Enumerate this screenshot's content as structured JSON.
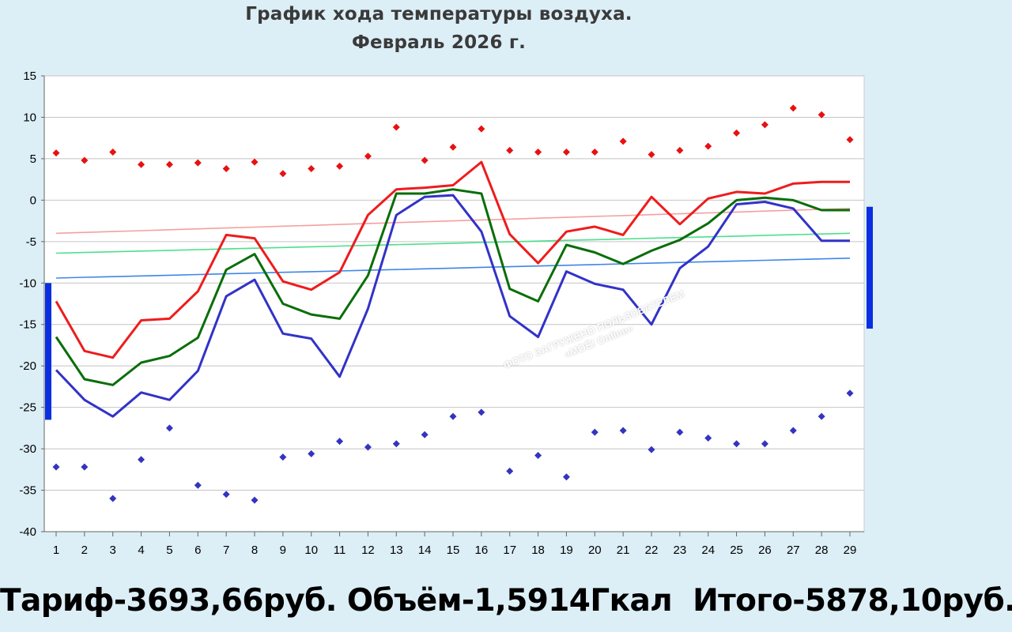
{
  "header": {
    "title_line1": "График хода температуры воздуха.",
    "title_line2": "Февраль 2026 г."
  },
  "footer": {
    "text": "Тариф-3693,66руб. Объём-1,5914Гкал  Итого-5878,10руб."
  },
  "watermark": {
    "line1": "ФОТО ЗАГРУЖЕНО ПОЛЬЗОВАТЕЛЕМ",
    "line2": "«МОЁ! Online»"
  },
  "chart_data": {
    "type": "line",
    "title": "График хода температуры воздуха.\nФевраль 2026 г.",
    "xlabel": "",
    "ylabel": "",
    "x": [
      1,
      2,
      3,
      4,
      5,
      6,
      7,
      8,
      9,
      10,
      11,
      12,
      13,
      14,
      15,
      16,
      17,
      18,
      19,
      20,
      21,
      22,
      23,
      24,
      25,
      26,
      27,
      28,
      29
    ],
    "ylim": [
      -40,
      15
    ],
    "yticks": [
      15,
      10,
      5,
      0,
      -5,
      -10,
      -15,
      -20,
      -25,
      -30,
      -35,
      -40
    ],
    "grid": true,
    "legend": "none",
    "series": [
      {
        "kind": "line",
        "color": "#ee1c1c",
        "values": [
          -12.2,
          -18.2,
          -19.0,
          -14.5,
          -14.3,
          -11.0,
          -4.2,
          -4.6,
          -9.8,
          -10.8,
          -8.7,
          -1.8,
          1.3,
          1.5,
          1.8,
          4.6,
          -4.1,
          -7.6,
          -3.8,
          -3.2,
          -4.2,
          0.4,
          -2.9,
          0.2,
          1.0,
          0.8,
          2.0,
          2.2,
          2.2
        ]
      },
      {
        "kind": "line",
        "color": "#0a6e0a",
        "values": [
          -16.5,
          -21.6,
          -22.3,
          -19.6,
          -18.8,
          -16.6,
          -8.4,
          -6.5,
          -12.5,
          -13.8,
          -14.3,
          -9.1,
          0.8,
          0.8,
          1.3,
          0.8,
          -10.7,
          -12.2,
          -5.4,
          -6.3,
          -7.7,
          -6.1,
          -4.8,
          -2.8,
          0.0,
          0.3,
          0.0,
          -1.2,
          -1.2
        ]
      },
      {
        "kind": "line",
        "color": "#3232c8",
        "values": [
          -20.5,
          -24.1,
          -26.1,
          -23.2,
          -24.1,
          -20.6,
          -11.6,
          -9.6,
          -16.1,
          -16.7,
          -21.3,
          -13.1,
          -1.8,
          0.4,
          0.6,
          -3.8,
          -14.0,
          -16.5,
          -8.6,
          -10.1,
          -10.8,
          -15.0,
          -8.2,
          -5.6,
          -0.5,
          -0.2,
          -1.0,
          -4.9,
          -4.9
        ]
      },
      {
        "kind": "points",
        "color": "#e81010",
        "values": [
          5.7,
          4.8,
          5.8,
          4.3,
          4.3,
          4.5,
          3.8,
          4.6,
          3.2,
          3.8,
          4.1,
          5.3,
          8.8,
          4.8,
          6.4,
          8.6,
          6.0,
          5.8,
          5.8,
          5.8,
          7.1,
          5.5,
          6.0,
          6.5,
          8.1,
          9.1,
          11.1,
          10.3,
          7.3
        ]
      },
      {
        "kind": "points",
        "color": "#3434c0",
        "values": [
          -32.2,
          -32.2,
          -36.0,
          -31.3,
          -27.5,
          -34.4,
          -35.5,
          -36.2,
          -31.0,
          -30.6,
          -29.1,
          -29.8,
          -29.4,
          -28.3,
          -26.1,
          -25.6,
          -32.7,
          -30.8,
          -33.4,
          -28.0,
          -27.8,
          -30.1,
          -28.0,
          -28.7,
          -29.4,
          -29.4,
          -27.8,
          -26.1,
          -23.3
        ]
      },
      {
        "kind": "trend",
        "color": "#f4a0a0",
        "values": [
          -4.0,
          -3.89,
          -3.79,
          -3.68,
          -3.57,
          -3.46,
          -3.36,
          -3.25,
          -3.14,
          -3.04,
          -2.93,
          -2.82,
          -2.71,
          -2.61,
          -2.5,
          -2.39,
          -2.29,
          -2.18,
          -2.07,
          -1.96,
          -1.86,
          -1.75,
          -1.64,
          -1.54,
          -1.43,
          -1.32,
          -1.21,
          -1.11,
          -1.0
        ]
      },
      {
        "kind": "trend",
        "color": "#4ce08c",
        "values": [
          -6.4,
          -6.31,
          -6.23,
          -6.14,
          -6.06,
          -5.97,
          -5.88,
          -5.8,
          -5.71,
          -5.63,
          -5.54,
          -5.46,
          -5.37,
          -5.28,
          -5.2,
          -5.11,
          -5.03,
          -4.94,
          -4.85,
          -4.77,
          -4.68,
          -4.6,
          -4.51,
          -4.43,
          -4.34,
          -4.25,
          -4.17,
          -4.08,
          -4.0
        ]
      },
      {
        "kind": "trend",
        "color": "#3f86e6",
        "values": [
          -9.4,
          -9.31,
          -9.23,
          -9.14,
          -9.06,
          -8.97,
          -8.89,
          -8.8,
          -8.71,
          -8.63,
          -8.54,
          -8.46,
          -8.37,
          -8.29,
          -8.2,
          -8.11,
          -8.03,
          -7.94,
          -7.86,
          -7.77,
          -7.69,
          -7.6,
          -7.51,
          -7.43,
          -7.34,
          -7.26,
          -7.17,
          -7.09,
          -7.0
        ]
      }
    ],
    "range_markers": [
      {
        "side": "left",
        "color": "#0a2fe0",
        "from": -26.5,
        "to": -10.0
      },
      {
        "side": "right",
        "color": "#0a2fe0",
        "from": -15.5,
        "to": -0.8
      }
    ]
  }
}
